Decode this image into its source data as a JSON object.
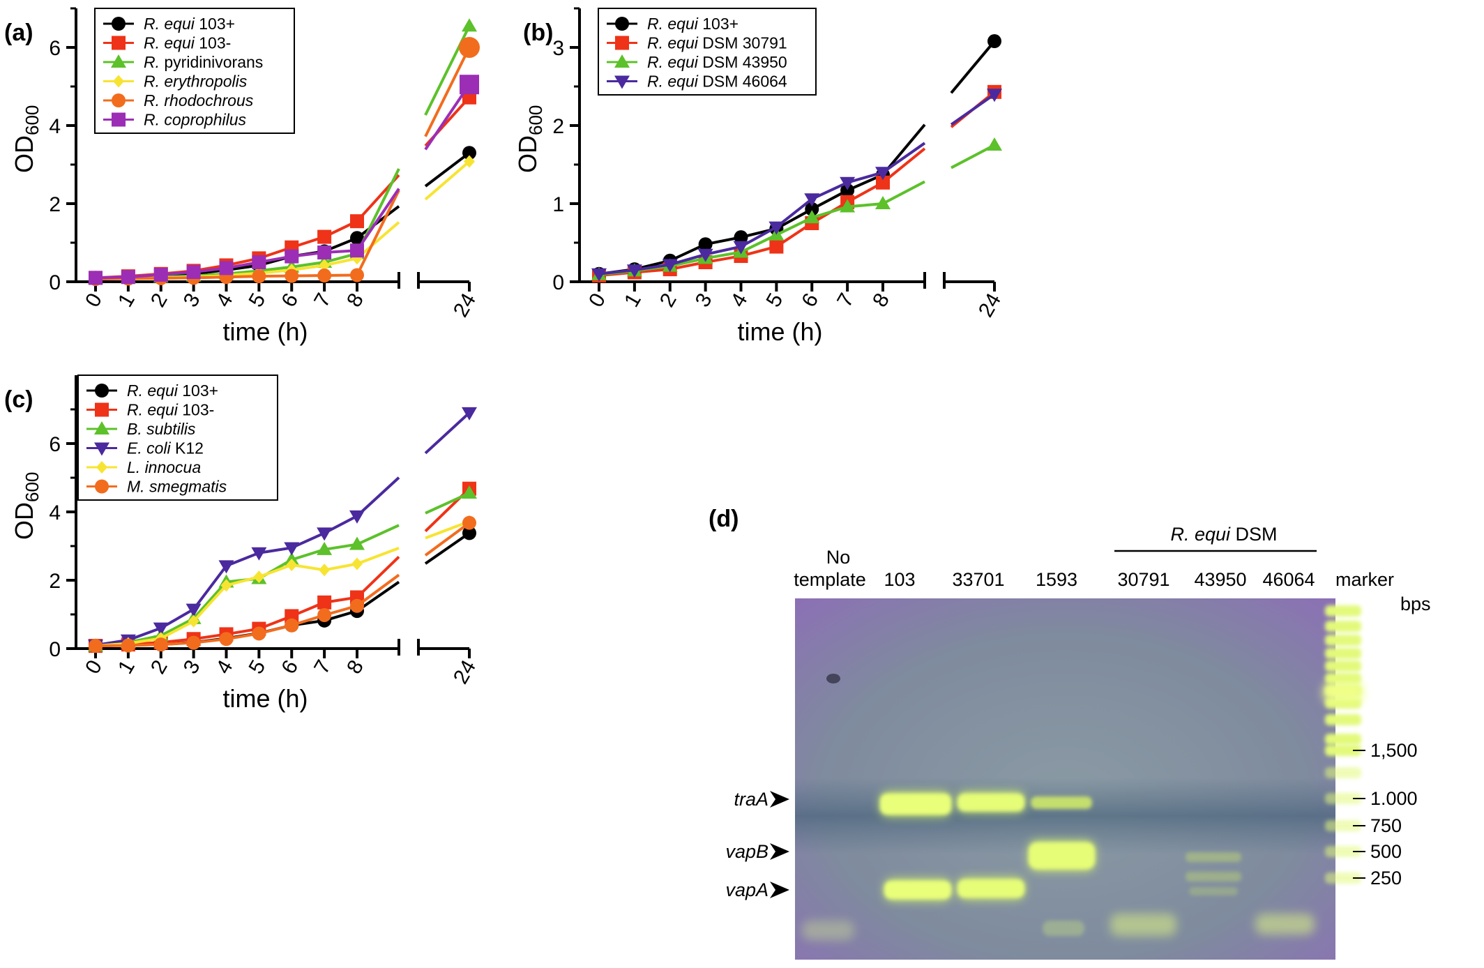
{
  "panels": [
    {
      "letter": "(a)",
      "chart_data": {
        "type": "line",
        "ylabel": "OD",
        "ylabel_sub": "600",
        "xlabel": "time (h)",
        "x": [
          0,
          1,
          2,
          3,
          4,
          5,
          6,
          7,
          8,
          24
        ],
        "x_tick_labels": [
          "0",
          "1",
          "2",
          "3",
          "4",
          "5",
          "6",
          "7",
          "8",
          "24"
        ],
        "broken_x_axis": true,
        "ylim": [
          0,
          7
        ],
        "y_ticks": [
          0,
          2,
          4,
          6
        ],
        "y_tick_labels": [
          "0",
          "2",
          "4",
          "6"
        ],
        "legend_position": "top-left",
        "series": [
          {
            "name": "R. equi",
            "name_suffix": " 103+",
            "color": "#000000",
            "marker": "circle",
            "values": [
              0.1,
              0.12,
              0.15,
              0.2,
              0.3,
              0.42,
              0.65,
              0.78,
              1.12,
              3.3
            ]
          },
          {
            "name": "R. equi",
            "name_suffix": " 103-",
            "color": "#ee3318",
            "marker": "square",
            "values": [
              0.1,
              0.14,
              0.2,
              0.28,
              0.42,
              0.6,
              0.88,
              1.15,
              1.55,
              4.72
            ]
          },
          {
            "name": "R.",
            "name_suffix": " pyridinivorans",
            "color": "#5cc12a",
            "marker": "triangle-up",
            "values": [
              0.08,
              0.1,
              0.12,
              0.15,
              0.2,
              0.28,
              0.38,
              0.5,
              0.72,
              6.55
            ]
          },
          {
            "name": "R. erythropolis",
            "name_suffix": "",
            "color": "#f7e432",
            "marker": "diamond",
            "values": [
              0.08,
              0.09,
              0.1,
              0.12,
              0.16,
              0.22,
              0.3,
              0.42,
              0.6,
              3.08
            ]
          },
          {
            "name": "R. rhodochrous",
            "name_suffix": "",
            "color": "#f26c1e",
            "marker": "circle",
            "values": [
              0.07,
              0.08,
              0.09,
              0.1,
              0.12,
              0.14,
              0.15,
              0.16,
              0.17,
              6.0
            ]
          },
          {
            "name": "R. coprophilus",
            "name_suffix": "",
            "color": "#9b2eb5",
            "marker": "square",
            "values": [
              0.1,
              0.12,
              0.18,
              0.25,
              0.35,
              0.5,
              0.65,
              0.75,
              0.8,
              5.05
            ]
          }
        ]
      }
    },
    {
      "letter": "(b)",
      "chart_data": {
        "type": "line",
        "ylabel": "OD",
        "ylabel_sub": "600",
        "xlabel": "time (h)",
        "x": [
          0,
          1,
          2,
          3,
          4,
          5,
          6,
          7,
          8,
          24
        ],
        "x_tick_labels": [
          "0",
          "1",
          "2",
          "3",
          "4",
          "5",
          "6",
          "7",
          "8",
          "24"
        ],
        "broken_x_axis": true,
        "ylim": [
          0,
          3.5
        ],
        "y_ticks": [
          0,
          1,
          2,
          3
        ],
        "y_tick_labels": [
          "0",
          "1",
          "2",
          "3"
        ],
        "legend_position": "top-left",
        "series": [
          {
            "name": "R. equi",
            "name_suffix": " 103+",
            "color": "#000000",
            "marker": "circle",
            "values": [
              0.1,
              0.16,
              0.27,
              0.48,
              0.57,
              0.68,
              0.93,
              1.17,
              1.37,
              3.08
            ]
          },
          {
            "name": "R. equi",
            "name_suffix": " DSM 30791",
            "color": "#ee3318",
            "marker": "square",
            "values": [
              0.08,
              0.12,
              0.16,
              0.25,
              0.33,
              0.45,
              0.75,
              1.02,
              1.27,
              2.43
            ]
          },
          {
            "name": "R. equi",
            "name_suffix": " DSM 43950",
            "color": "#5cc12a",
            "marker": "triangle-up",
            "values": [
              0.09,
              0.14,
              0.2,
              0.3,
              0.38,
              0.6,
              0.82,
              0.96,
              1.0,
              1.75
            ]
          },
          {
            "name": "R. equi",
            "name_suffix": " DSM 46064",
            "color": "#4a2a9e",
            "marker": "triangle-down",
            "values": [
              0.1,
              0.15,
              0.22,
              0.35,
              0.45,
              0.7,
              1.06,
              1.27,
              1.4,
              2.4
            ]
          }
        ]
      }
    },
    {
      "letter": "(c)",
      "chart_data": {
        "type": "line",
        "ylabel": "OD",
        "ylabel_sub": "600",
        "xlabel": "time (h)",
        "x": [
          0,
          1,
          2,
          3,
          4,
          5,
          6,
          7,
          8,
          24
        ],
        "x_tick_labels": [
          "0",
          "1",
          "2",
          "3",
          "4",
          "5",
          "6",
          "7",
          "8",
          "24"
        ],
        "broken_x_axis": true,
        "ylim": [
          0,
          8
        ],
        "y_ticks": [
          0,
          2,
          4,
          6
        ],
        "y_tick_labels": [
          "0",
          "2",
          "4",
          "6"
        ],
        "legend_position": "top-left",
        "series": [
          {
            "name": "R. equi",
            "name_suffix": " 103+",
            "color": "#000000",
            "marker": "circle",
            "values": [
              0.08,
              0.1,
              0.12,
              0.18,
              0.3,
              0.45,
              0.68,
              0.82,
              1.1,
              3.38
            ]
          },
          {
            "name": "R. equi",
            "name_suffix": " 103-",
            "color": "#ee3318",
            "marker": "square",
            "values": [
              0.08,
              0.12,
              0.18,
              0.28,
              0.42,
              0.58,
              0.95,
              1.35,
              1.5,
              4.68
            ]
          },
          {
            "name": "B. subtilis",
            "name_suffix": "",
            "color": "#5cc12a",
            "marker": "triangle-up",
            "values": [
              0.08,
              0.18,
              0.38,
              0.88,
              1.95,
              2.05,
              2.6,
              2.9,
              3.05,
              4.55
            ]
          },
          {
            "name": "E. coli",
            "name_suffix": " K12",
            "color": "#4a2a9e",
            "marker": "triangle-down",
            "values": [
              0.1,
              0.25,
              0.6,
              1.15,
              2.42,
              2.8,
              2.95,
              3.38,
              3.88,
              6.9
            ]
          },
          {
            "name": "L. innocua",
            "name_suffix": "",
            "color": "#f7e432",
            "marker": "diamond",
            "values": [
              0.08,
              0.15,
              0.3,
              0.8,
              1.85,
              2.1,
              2.45,
              2.3,
              2.48,
              3.72
            ]
          },
          {
            "name": "M. smegmatis",
            "name_suffix": "",
            "color": "#f26c1e",
            "marker": "circle",
            "values": [
              0.08,
              0.09,
              0.12,
              0.17,
              0.28,
              0.44,
              0.68,
              0.98,
              1.25,
              3.68
            ]
          }
        ]
      }
    }
  ],
  "gel": {
    "letter": "(d)",
    "group_label_italic": "R. equi",
    "group_label_rest": " DSM",
    "lane_labels": [
      "No",
      "template",
      "103",
      "33701",
      "1593",
      "30791",
      "43950",
      "46064",
      "marker"
    ],
    "ladder_unit": "bps",
    "ladder_labels": [
      "1,500",
      "1.000",
      "750",
      "500",
      "250"
    ],
    "band_labels": [
      "traA",
      "vapB",
      "vapA"
    ]
  }
}
